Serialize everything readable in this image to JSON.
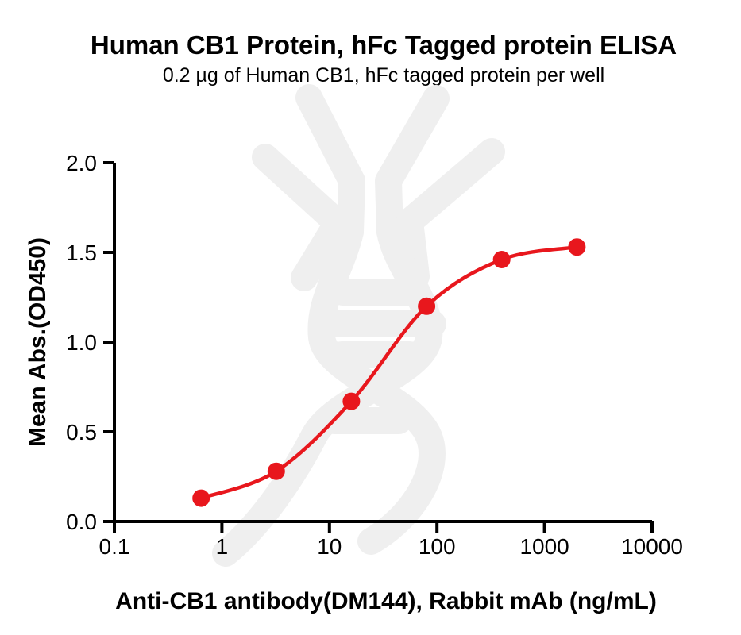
{
  "header": {
    "title": "Human CB1 Protein, hFc Tagged protein ELISA",
    "subtitle": "0.2 µg of Human CB1, hFc tagged protein per well"
  },
  "chart_data": {
    "type": "scatter",
    "curve": "sigmoidal-4PL-fit-line",
    "x": [
      0.64,
      3.2,
      16,
      80,
      400,
      2000
    ],
    "y": [
      0.13,
      0.28,
      0.67,
      1.2,
      1.46,
      1.53
    ],
    "x_scale": "log10",
    "xlabel": "Anti-CB1 antibody(DM144), Rabbit mAb (ng/mL)",
    "ylabel": "Mean Abs.(OD450)",
    "xlim": [
      0.1,
      10000
    ],
    "ylim": [
      0.0,
      2.0
    ],
    "x_tick_values": [
      0.1,
      1,
      10,
      100,
      1000,
      10000
    ],
    "x_tick_labels": [
      "0.1",
      "1",
      "10",
      "100",
      "1000",
      "10000"
    ],
    "y_tick_values": [
      0.0,
      0.5,
      1.0,
      1.5,
      2.0
    ],
    "y_tick_labels": [
      "0.0",
      "0.5",
      "1.0",
      "1.5",
      "2.0"
    ],
    "grid": false,
    "legend": "none",
    "series_color": "#e8171d",
    "axis_color": "#000000",
    "watermark": "dna-helix-logo",
    "watermark_color": "#efefef"
  }
}
